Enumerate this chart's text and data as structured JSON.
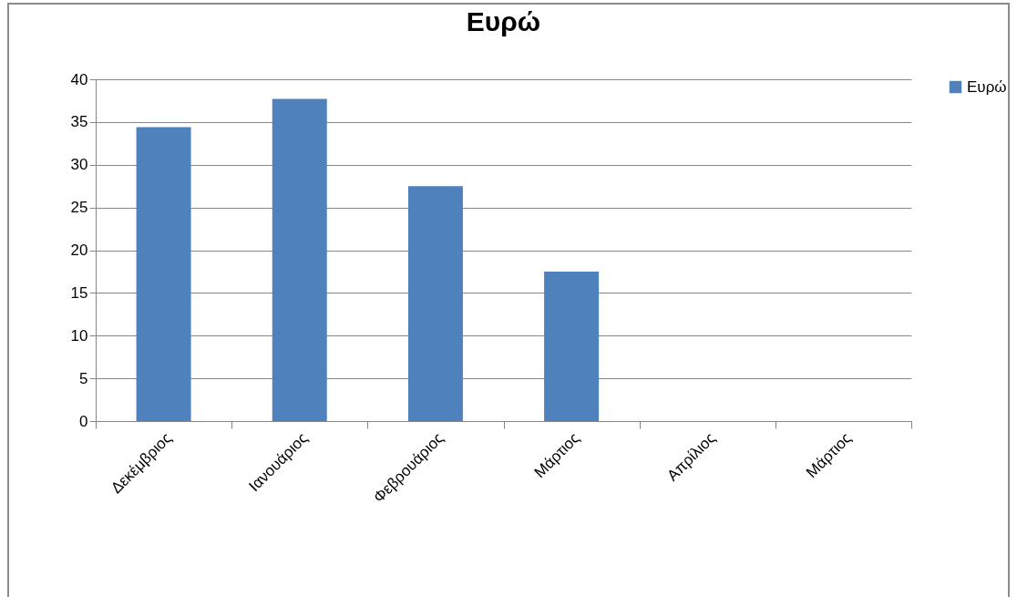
{
  "chart_data": {
    "type": "bar",
    "title": "Ευρώ",
    "categories": [
      "Δεκέμβριος",
      "Ιανουάριος",
      "Φεβρουάριος",
      "Μάρτιος",
      "Απρίλιος",
      "Μάρτιος"
    ],
    "series": [
      {
        "name": "Ευρώ",
        "color": "#4f81bd",
        "values": [
          34.4,
          37.7,
          27.5,
          17.5,
          0,
          0
        ]
      }
    ],
    "ylim": [
      0,
      40
    ],
    "yticks": [
      0,
      5,
      10,
      15,
      20,
      25,
      30,
      35,
      40
    ],
    "grid": "y",
    "legend": "right"
  }
}
